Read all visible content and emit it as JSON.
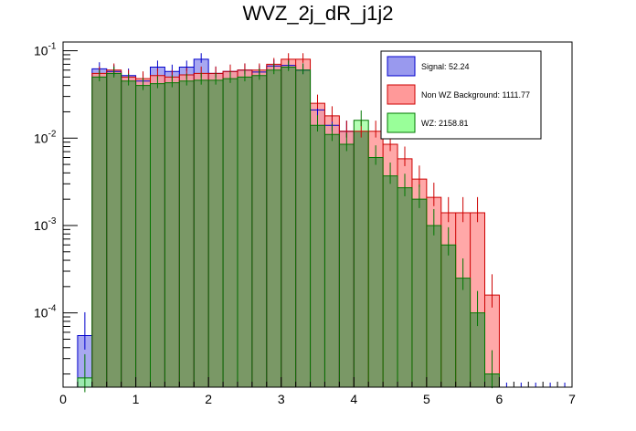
{
  "title": "WVZ_2j_dR_j1j2",
  "chart_data": {
    "type": "bar",
    "title": "WVZ_2j_dR_j1j2",
    "xlabel": "",
    "ylabel": "",
    "xlim": [
      0,
      7
    ],
    "ylim_log10": [
      -4.85,
      -0.9
    ],
    "y_scale": "log",
    "x_ticks": [
      "0",
      "1",
      "2",
      "3",
      "4",
      "5",
      "6",
      "7"
    ],
    "y_ticks": [
      {
        "base": "10",
        "exp": "-4",
        "log": -4
      },
      {
        "base": "10",
        "exp": "-3",
        "log": -3
      },
      {
        "base": "10",
        "exp": "-2",
        "log": -2
      },
      {
        "base": "10",
        "exp": "-1",
        "log": -1
      }
    ],
    "bin_edges": [
      0.2,
      0.4,
      0.6,
      0.8,
      1.0,
      1.2,
      1.4,
      1.6,
      1.8,
      2.0,
      2.2,
      2.4,
      2.6,
      2.8,
      3.0,
      3.2,
      3.4,
      3.6,
      3.8,
      4.0,
      4.2,
      4.4,
      4.6,
      4.8,
      5.0,
      5.2,
      5.4,
      5.6,
      5.8,
      6.0
    ],
    "legend_position": "top-right",
    "series": [
      {
        "name": "Signal",
        "legend_label": "Signal: 52.24",
        "color": "#9999ee",
        "edge": "#0000cc",
        "values": [
          5.5e-05,
          0.062,
          0.058,
          0.052,
          0.045,
          0.065,
          0.058,
          0.065,
          0.08,
          0.055,
          0.058,
          0.06,
          0.057,
          0.067,
          0.068,
          0.06,
          0.021,
          0.014,
          0.012,
          0.0,
          0.0,
          0.0,
          0.0,
          0.0,
          0.0,
          0.0,
          0.0,
          0.0,
          0.0
        ],
        "visible_until_bin": 20
      },
      {
        "name": "Non WZ Background",
        "legend_label": "Non WZ Background: 1111.77",
        "color": "#ff9999",
        "edge": "#cc0000",
        "values": [
          0.0,
          0.055,
          0.06,
          0.05,
          0.048,
          0.052,
          0.05,
          0.053,
          0.055,
          0.055,
          0.058,
          0.06,
          0.06,
          0.07,
          0.08,
          0.08,
          0.025,
          0.018,
          0.012,
          0.012,
          0.012,
          0.0085,
          0.0058,
          0.0034,
          0.0021,
          0.0014,
          0.0014,
          0.0014,
          0.00016
        ],
        "visible_from_bin": 0
      },
      {
        "name": "WZ",
        "legend_label": "WZ: 2158.81",
        "color": "#99ff99",
        "edge": "#007700",
        "values": [
          1.8e-05,
          0.05,
          0.055,
          0.045,
          0.04,
          0.042,
          0.043,
          0.045,
          0.046,
          0.046,
          0.048,
          0.05,
          0.052,
          0.06,
          0.065,
          0.06,
          0.014,
          0.011,
          0.0085,
          0.016,
          0.006,
          0.0037,
          0.0027,
          0.002,
          0.001,
          0.0006,
          0.00025,
          0.0001,
          2e-05
        ]
      }
    ],
    "overlap_color": "#7a9866"
  }
}
